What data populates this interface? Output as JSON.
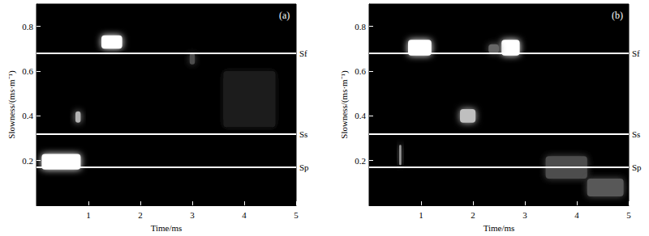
{
  "chart_data": [
    {
      "type": "heatmap",
      "title": "(a)",
      "xlabel": "Time/ms",
      "ylabel": "Slowness/(ms·m⁻¹)",
      "xlim": [
        0,
        5
      ],
      "xticks": [
        1,
        2,
        3,
        4,
        5
      ],
      "ylim": [
        0,
        0.9
      ],
      "yticks": [
        0.2,
        0.4,
        0.6,
        0.8
      ],
      "zlim": [
        0,
        1
      ],
      "cells": [
        {
          "t": [
            0.1,
            0.85
          ],
          "slowness": [
            0.16,
            0.23
          ],
          "value": 1.0
        },
        {
          "t": [
            1.25,
            1.65
          ],
          "slowness": [
            0.7,
            0.76
          ],
          "value": 1.0
        },
        {
          "t": [
            0.75,
            0.85
          ],
          "slowness": [
            0.37,
            0.42
          ],
          "value": 0.7
        },
        {
          "t": [
            2.95,
            3.05
          ],
          "slowness": [
            0.63,
            0.68
          ],
          "value": 0.3
        },
        {
          "t": [
            3.6,
            4.6
          ],
          "slowness": [
            0.35,
            0.6
          ],
          "value": 0.12
        }
      ],
      "reference_lines": [
        {
          "label": "Sf",
          "value": 0.68
        },
        {
          "label": "Ss",
          "value": 0.32
        },
        {
          "label": "Sp",
          "value": 0.17
        }
      ]
    },
    {
      "type": "heatmap",
      "title": "(b)",
      "xlabel": "Time/ms",
      "ylabel": "Slowness/(ms·m⁻¹)",
      "xlim": [
        0,
        5
      ],
      "xticks": [
        1,
        2,
        3,
        4,
        5
      ],
      "ylim": [
        0,
        0.9
      ],
      "yticks": [
        0.2,
        0.4,
        0.6,
        0.8
      ],
      "zlim": [
        0,
        1
      ],
      "cells": [
        {
          "t": [
            0.75,
            1.2
          ],
          "slowness": [
            0.67,
            0.74
          ],
          "value": 1.0
        },
        {
          "t": [
            2.55,
            2.9
          ],
          "slowness": [
            0.67,
            0.74
          ],
          "value": 1.0
        },
        {
          "t": [
            2.3,
            2.5
          ],
          "slowness": [
            0.68,
            0.72
          ],
          "value": 0.4
        },
        {
          "t": [
            1.75,
            2.05
          ],
          "slowness": [
            0.37,
            0.43
          ],
          "value": 0.75
        },
        {
          "t": [
            3.4,
            4.2
          ],
          "slowness": [
            0.12,
            0.22
          ],
          "value": 0.3
        },
        {
          "t": [
            4.2,
            4.9
          ],
          "slowness": [
            0.04,
            0.12
          ],
          "value": 0.35
        },
        {
          "t": [
            0.58,
            0.62
          ],
          "slowness": [
            0.18,
            0.27
          ],
          "value": 0.6
        }
      ],
      "reference_lines": [
        {
          "label": "Sf",
          "value": 0.68
        },
        {
          "label": "Ss",
          "value": 0.32
        },
        {
          "label": "Sp",
          "value": 0.17
        }
      ]
    }
  ]
}
